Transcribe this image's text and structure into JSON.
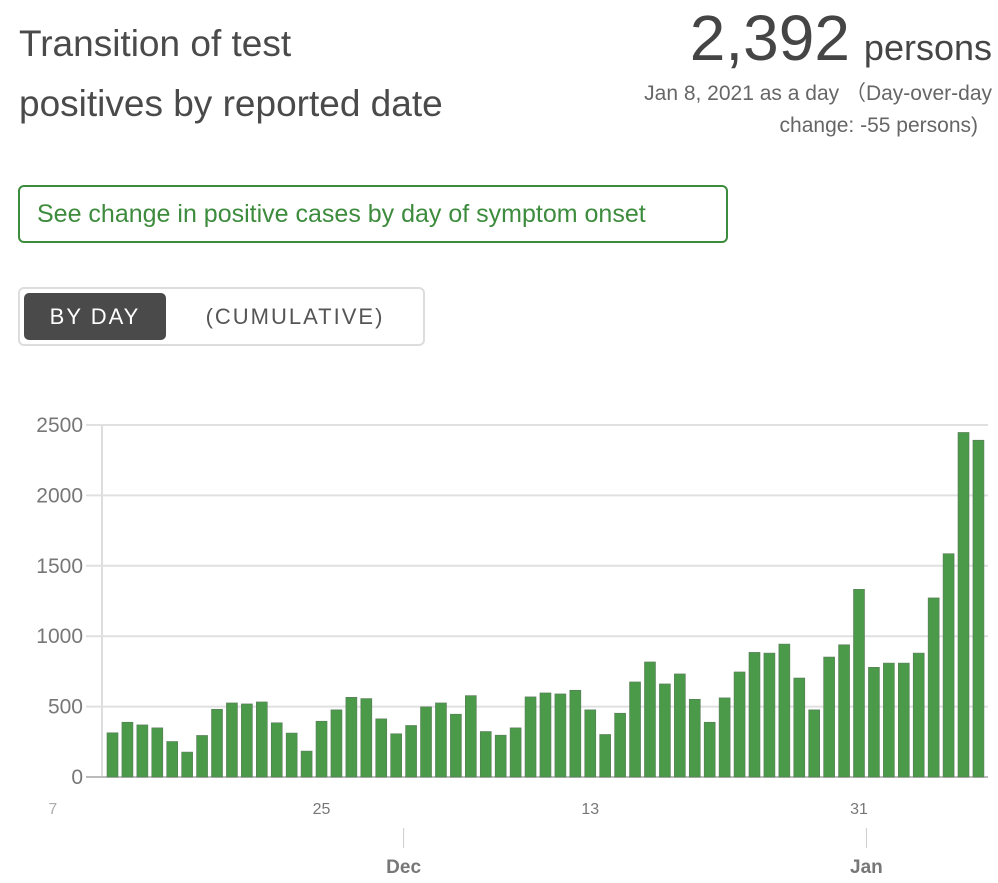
{
  "header": {
    "title_line1": "Transition of test",
    "title_line2": "positives by reported date",
    "stat_value": "2,392",
    "stat_unit": "persons",
    "stat_sub_line1": "Jan 8, 2021 as a day （Day-over-day",
    "stat_sub_line2": "change: -55 persons)"
  },
  "onset_button": {
    "label": "See change in positive cases by day of symptom onset"
  },
  "toggle": {
    "by_day": "BY DAY",
    "cumulative": "(CUMULATIVE)"
  },
  "colors": {
    "bar": "#4a9a4a",
    "accent": "#3d8b3d",
    "grid": "#e0e0e0"
  },
  "chart_data": {
    "type": "bar",
    "title": "",
    "xlabel": "",
    "ylabel": "",
    "ylim": [
      0,
      2500
    ],
    "yticks": [
      "0",
      "500",
      "1000",
      "1500",
      "2000",
      "2500"
    ],
    "ytick_values": [
      0,
      500,
      1000,
      1500,
      2000,
      2500
    ],
    "grid": true,
    "start_date": "2020-11-11",
    "end_date": "2021-01-08",
    "xtick_labels": [
      {
        "label": "7",
        "day_index": -4
      },
      {
        "label": "25",
        "day_index": 14
      },
      {
        "label": "13",
        "day_index": 32
      },
      {
        "label": "31",
        "day_index": 50
      }
    ],
    "month_labels": [
      {
        "label": "Dec",
        "day_index": 20
      },
      {
        "label": "Jan",
        "day_index": 51
      }
    ],
    "values": [
      314,
      389,
      370,
      349,
      252,
      177,
      295,
      481,
      526,
      519,
      533,
      385,
      312,
      184,
      396,
      477,
      566,
      557,
      413,
      307,
      366,
      498,
      526,
      446,
      578,
      323,
      297,
      349,
      569,
      597,
      590,
      616,
      477,
      302,
      453,
      675,
      817,
      661,
      732,
      552,
      389,
      562,
      746,
      885,
      880,
      944,
      703,
      477,
      852,
      939,
      1333,
      779,
      809,
      809,
      880,
      1272,
      1586,
      2447,
      2392
    ]
  }
}
